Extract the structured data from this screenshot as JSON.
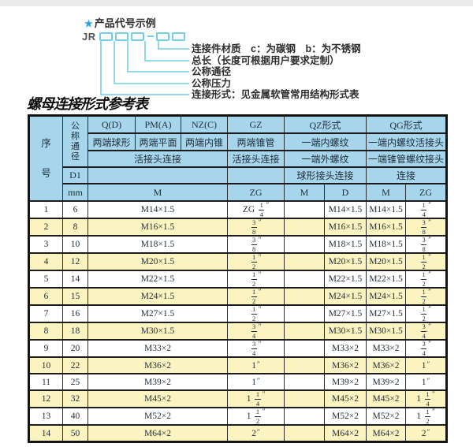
{
  "colors": {
    "header_bg": "#a7d6ec",
    "row_alt_bg": "#fbf3c0",
    "diagram_line": "#74cde4",
    "star_blue": "#2aa0dc"
  },
  "diagram": {
    "star_icon": "★",
    "heading": "产品代号示例",
    "code_prefix": "JR",
    "labels": [
      "连接件材质　c：为碳钢　b：为不锈钢",
      "总长（长度可根据用户要求定制）",
      "公称通径",
      "公称压力",
      "连接形式：见金属软管常用结构形式表"
    ]
  },
  "title": "螺母连接形式参考表",
  "table": {
    "header": {
      "seq_v": "序号",
      "dn_v": "公称通径",
      "d1": "D1",
      "mm": "mm",
      "qd": "Q(D)",
      "qd_ends": "两端球形",
      "pm": "PM(A)",
      "pm_ends": "两端平面",
      "nz": "NZ(C)",
      "nz_ends": "两端内锥",
      "union_joint": "活接头连接",
      "gz": "GZ",
      "gz_ends": "两端锥管",
      "gz_union": "活接头连接",
      "qz": "QZ形式",
      "qz_row2": "一端内螺纹",
      "qz_row3": "一端外螺纹",
      "qz_row4": "球形接头连接",
      "qg": "QG形式",
      "qg_row2": "一端内螺纹活接头",
      "qg_row3": "一端锥管螺纹接头",
      "qg_row4": "连接",
      "m": "M",
      "zg": "ZG",
      "d": "D"
    },
    "rows": [
      {
        "seq": "1",
        "dn": "6",
        "m": "M14×1.5",
        "gz_zg": "ZG 1/4\"",
        "qz_m": "",
        "qz_d": "M14×1.5",
        "qg_m": "M14×1.5",
        "qg_zg": "1/4\""
      },
      {
        "seq": "2",
        "dn": "8",
        "m": "M16×1.5",
        "gz_zg": "3/8\"",
        "qz_m": "",
        "qz_d": "M16×1.5",
        "qg_m": "M16×1.5",
        "qg_zg": "3/8\""
      },
      {
        "seq": "3",
        "dn": "10",
        "m": "M18×1.5",
        "gz_zg": "3/8\"",
        "qz_m": "",
        "qz_d": "M18×1.5",
        "qg_m": "M18×1.5",
        "qg_zg": "3/8\""
      },
      {
        "seq": "4",
        "dn": "12",
        "m": "M20×1.5",
        "gz_zg": "1/2\"",
        "qz_m": "",
        "qz_d": "M20×1.5",
        "qg_m": "M20×1.5",
        "qg_zg": "1/2\""
      },
      {
        "seq": "5",
        "dn": "14",
        "m": "M22×1.5",
        "gz_zg": "1/2\"",
        "qz_m": "",
        "qz_d": "M22×1.5",
        "qg_m": "M22×1.5",
        "qg_zg": "1/2\""
      },
      {
        "seq": "6",
        "dn": "15",
        "m": "M24×1.5",
        "gz_zg": "1/2\"",
        "qz_m": "",
        "qz_d": "M24×1.5",
        "qg_m": "M24×1.5",
        "qg_zg": "1/2\""
      },
      {
        "seq": "7",
        "dn": "16",
        "m": "M27×1.5",
        "gz_zg": "1/2\"",
        "qz_m": "",
        "qz_d": "M27×1.5",
        "qg_m": "M27×1.5",
        "qg_zg": "1/2\""
      },
      {
        "seq": "8",
        "dn": "18",
        "m": "M30×1.5",
        "gz_zg": "3/4\"",
        "qz_m": "",
        "qz_d": "M30×1.5",
        "qg_m": "M30×1.5",
        "qg_zg": "3/4\""
      },
      {
        "seq": "9",
        "dn": "20",
        "m": "M33×2",
        "gz_zg": "3/4\"",
        "qz_m": "",
        "qz_d": "M33×2",
        "qg_m": "M33×2",
        "qg_zg": "3/4\""
      },
      {
        "seq": "10",
        "dn": "22",
        "m": "M36×2",
        "gz_zg": "1\"",
        "qz_m": "",
        "qz_d": "M36×2",
        "qg_m": "M36×2",
        "qg_zg": "1\""
      },
      {
        "seq": "11",
        "dn": "25",
        "m": "M39×2",
        "gz_zg": "1\"",
        "qz_m": "",
        "qz_d": "M39×2",
        "qg_m": "M39×2",
        "qg_zg": "1\""
      },
      {
        "seq": "12",
        "dn": "32",
        "m": "M45×2",
        "gz_zg": "1 1/4\"",
        "qz_m": "",
        "qz_d": "M45×2",
        "qg_m": "M45×2",
        "qg_zg": "1 1/4\""
      },
      {
        "seq": "13",
        "dn": "40",
        "m": "M52×2",
        "gz_zg": "1 1/2\"",
        "qz_m": "",
        "qz_d": "M52×2",
        "qg_m": "M52×2",
        "qg_zg": "1 1/2\""
      },
      {
        "seq": "14",
        "dn": "50",
        "m": "M64×2",
        "gz_zg": "2\"",
        "qz_m": "",
        "qz_d": "M64×2",
        "qg_m": "M64×2",
        "qg_zg": "2\""
      }
    ]
  }
}
